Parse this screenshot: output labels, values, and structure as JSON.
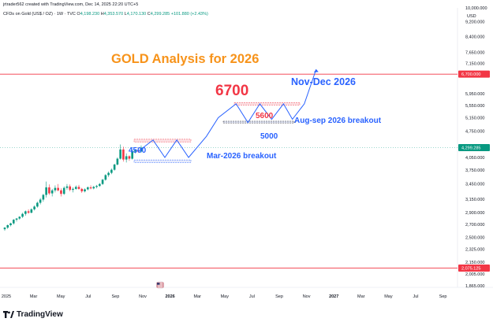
{
  "header": {
    "credit": "jrtrader562 created with TradingView.com, Dec 14, 2025 22:20 UTC+5",
    "symbol": "CFDs on Gold (US$ / OZ) · 1W · TVC",
    "open_label": "O",
    "open": "4,198.230",
    "high_label": "H",
    "high": "4,353.570",
    "low_label": "L",
    "low": "4,170.130",
    "close_label": "C",
    "close": "4,299.285",
    "change": "+101.880 (+2.43%)"
  },
  "currency": "USD",
  "brand": {
    "name": "TradingView",
    "logo_icon": "tradingview-logo-icon"
  },
  "colors": {
    "up": "#089981",
    "down": "#f23645",
    "projection": "#2962ff",
    "title": "#f7931a"
  },
  "chart_data": {
    "type": "candlestick",
    "title": "GOLD Analysis for 2026",
    "price_scale": "log",
    "ylim": [
      1865,
      10000
    ],
    "x_ticks": [
      "2025",
      "Mar",
      "May",
      "Jul",
      "Sep",
      "Nov",
      "2026",
      "Mar",
      "May",
      "Jul",
      "Sep",
      "Nov",
      "2027",
      "Mar",
      "May",
      "Jul",
      "Sep"
    ],
    "y_ticks": [
      "10,000.000",
      "9,200.000",
      "8,400.000",
      "7,650.000",
      "7,150.000",
      "6,700.000",
      "5,950.000",
      "5,550.000",
      "5,150.000",
      "4,750.000",
      "4,299.285",
      "4,050.000",
      "3,750.000",
      "3,450.000",
      "3,150.000",
      "2,900.000",
      "2,700.000",
      "2,500.000",
      "2,325.000",
      "2,150.000",
      "2,075.125",
      "2,005.000",
      "1,865.000"
    ],
    "y_tick_values": [
      10000,
      9200,
      8400,
      7650,
      7150,
      6700,
      5950,
      5550,
      5150,
      4750,
      4299.285,
      4050,
      3750,
      3450,
      3150,
      2900,
      2700,
      2500,
      2325,
      2150,
      2075.125,
      2005,
      1865
    ],
    "price_badges": [
      {
        "label": "6,700.000",
        "value": 6700,
        "color": "#f23645"
      },
      {
        "label": "4,299.285",
        "value": 4299.285,
        "color": "#089981"
      },
      {
        "label": "2,075.125",
        "value": 2075.125,
        "color": "#f23645"
      }
    ],
    "candles_ohlc": [
      [
        2625,
        2660,
        2600,
        2650
      ],
      [
        2650,
        2700,
        2630,
        2690
      ],
      [
        2690,
        2730,
        2670,
        2720
      ],
      [
        2720,
        2790,
        2700,
        2780
      ],
      [
        2780,
        2810,
        2750,
        2800
      ],
      [
        2800,
        2840,
        2780,
        2830
      ],
      [
        2830,
        2900,
        2810,
        2880
      ],
      [
        2880,
        2940,
        2850,
        2925
      ],
      [
        2925,
        2960,
        2880,
        2900
      ],
      [
        2900,
        2980,
        2890,
        2960
      ],
      [
        2960,
        3030,
        2940,
        3010
      ],
      [
        3010,
        3100,
        2990,
        3080
      ],
      [
        3080,
        3170,
        3050,
        3140
      ],
      [
        3140,
        3250,
        3100,
        3230
      ],
      [
        3230,
        3500,
        3180,
        3380
      ],
      [
        3380,
        3440,
        3230,
        3260
      ],
      [
        3260,
        3350,
        3200,
        3320
      ],
      [
        3320,
        3420,
        3280,
        3370
      ],
      [
        3370,
        3450,
        3300,
        3320
      ],
      [
        3320,
        3360,
        3200,
        3250
      ],
      [
        3250,
        3400,
        3230,
        3370
      ],
      [
        3370,
        3450,
        3330,
        3400
      ],
      [
        3400,
        3440,
        3300,
        3330
      ],
      [
        3330,
        3380,
        3280,
        3350
      ],
      [
        3350,
        3420,
        3330,
        3390
      ],
      [
        3390,
        3430,
        3330,
        3350
      ],
      [
        3350,
        3370,
        3270,
        3300
      ],
      [
        3300,
        3360,
        3280,
        3340
      ],
      [
        3340,
        3400,
        3320,
        3380
      ],
      [
        3380,
        3420,
        3340,
        3360
      ],
      [
        3360,
        3410,
        3340,
        3390
      ],
      [
        3390,
        3430,
        3360,
        3410
      ],
      [
        3410,
        3470,
        3390,
        3450
      ],
      [
        3450,
        3560,
        3430,
        3540
      ],
      [
        3540,
        3660,
        3520,
        3640
      ],
      [
        3640,
        3720,
        3600,
        3690
      ],
      [
        3690,
        3790,
        3660,
        3760
      ],
      [
        3760,
        3900,
        3740,
        3880
      ],
      [
        3880,
        4050,
        3860,
        4020
      ],
      [
        4020,
        4380,
        4000,
        4250
      ],
      [
        4250,
        4320,
        3950,
        4000
      ],
      [
        4000,
        4150,
        3930,
        4080
      ],
      [
        4080,
        4100,
        3970,
        4020
      ],
      [
        4020,
        4250,
        4000,
        4200
      ],
      [
        4200,
        4260,
        4150,
        4230
      ],
      [
        4230,
        4300,
        4170,
        4200
      ],
      [
        4198,
        4354,
        4170,
        4299
      ]
    ],
    "annotations": {
      "level_6700": "6700",
      "level_5600": "5600",
      "level_5000": "5000",
      "level_4500": "4500",
      "nov_dec_2026": "Nov-Dec 2026",
      "aug_sep_breakout": "Aug-sep 2026  breakout",
      "mar_breakout": "Mar-2026 breakout"
    }
  }
}
